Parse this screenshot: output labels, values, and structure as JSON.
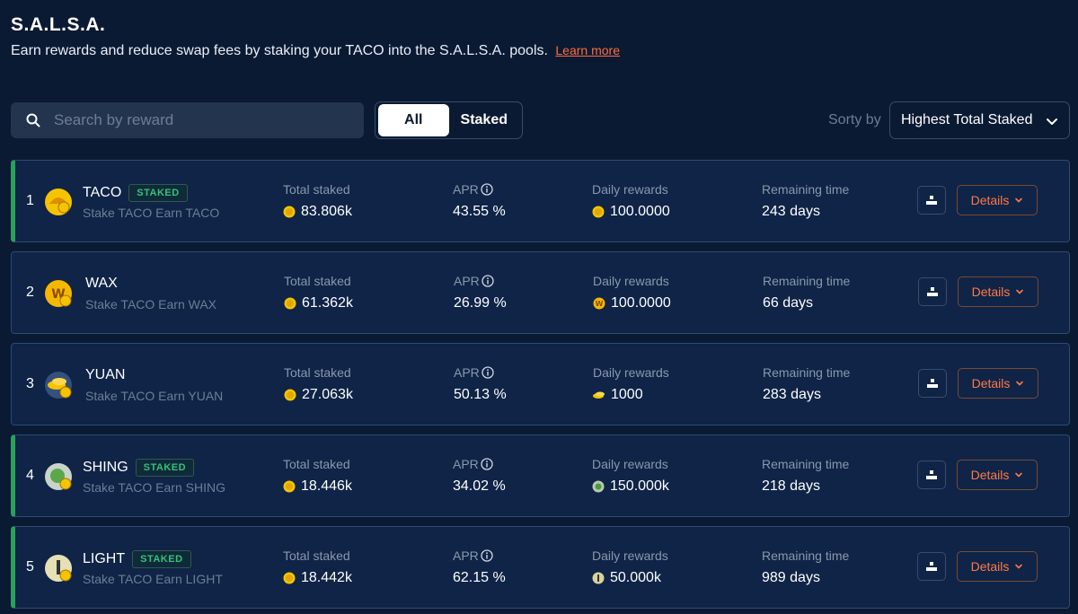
{
  "header": {
    "title": "S.A.L.S.A.",
    "subtitle": "Earn rewards and reduce swap fees by staking your TACO into the S.A.L.S.A. pools.",
    "learn_more": "Learn more"
  },
  "search": {
    "placeholder": "Search by reward",
    "value": ""
  },
  "filters": {
    "all": "All",
    "staked": "Staked",
    "active": "All"
  },
  "sort": {
    "label": "Sorty by",
    "selected": "Highest Total Staked"
  },
  "columns": {
    "total": "Total staked",
    "apr": "APR",
    "daily": "Daily rewards",
    "remaining": "Remaining time"
  },
  "details_label": "Details",
  "colors": {
    "accent": "#ff7a45",
    "staked": "#2aa15b",
    "bg": "#0b1a33"
  },
  "pools": [
    {
      "rank": "1",
      "name": "TACO",
      "staked": true,
      "badge": "STAKED",
      "desc": "Stake TACO Earn TACO",
      "total": "83.806k",
      "apr": "43.55 %",
      "daily": "100.0000",
      "remaining": "243 days",
      "icon": "taco-icon"
    },
    {
      "rank": "2",
      "name": "WAX",
      "staked": false,
      "badge": "",
      "desc": "Stake TACO Earn WAX",
      "total": "61.362k",
      "apr": "26.99 %",
      "daily": "100.0000",
      "remaining": "66 days",
      "icon": "wax-icon"
    },
    {
      "rank": "3",
      "name": "YUAN",
      "staked": false,
      "badge": "",
      "desc": "Stake TACO Earn YUAN",
      "total": "27.063k",
      "apr": "50.13 %",
      "daily": "1000",
      "remaining": "283 days",
      "icon": "yuan-icon"
    },
    {
      "rank": "4",
      "name": "SHING",
      "staked": true,
      "badge": "STAKED",
      "desc": "Stake TACO Earn SHING",
      "total": "18.446k",
      "apr": "34.02 %",
      "daily": "150.000k",
      "remaining": "218 days",
      "icon": "shing-icon"
    },
    {
      "rank": "5",
      "name": "LIGHT",
      "staked": true,
      "badge": "STAKED",
      "desc": "Stake TACO Earn LIGHT",
      "total": "18.442k",
      "apr": "62.15 %",
      "daily": "50.000k",
      "remaining": "989 days",
      "icon": "light-icon"
    }
  ]
}
